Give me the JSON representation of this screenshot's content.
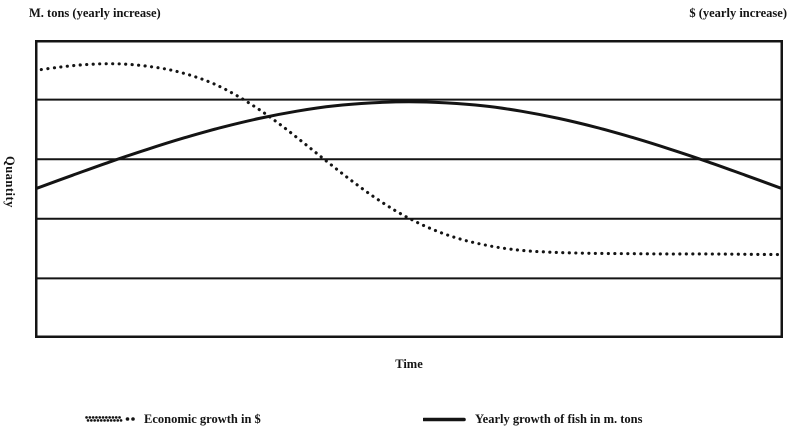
{
  "header": {
    "left_label": "M. tons (yearly increase)",
    "right_label": "$ (yearly increase)"
  },
  "axes": {
    "y_label": "Quantity",
    "x_label": "Time"
  },
  "legend": [
    {
      "label": "Economic growth in $",
      "style": "dotted"
    },
    {
      "label": "Yearly growth of fish in m. tons",
      "style": "solid"
    }
  ],
  "colors": {
    "ink": "#141414",
    "background": "#ffffff"
  },
  "chart_data": {
    "type": "line",
    "title": "",
    "xlabel": "Time",
    "ylabel": "Quantity",
    "x_range": [
      0,
      100
    ],
    "y_range": [
      0,
      100
    ],
    "axis_tick_labels": "none",
    "grid": "horizontal-only",
    "gridlines_y": [
      20,
      40,
      60,
      80
    ],
    "legend_position": "below-chart",
    "series": [
      {
        "name": "Economic growth in $",
        "style": "dotted",
        "points": [
          [
            0,
            89.8
          ],
          [
            3,
            90.8
          ],
          [
            6,
            91.6
          ],
          [
            9,
            92.0
          ],
          [
            12,
            91.9
          ],
          [
            15,
            91.2
          ],
          [
            18,
            90.0
          ],
          [
            21,
            88.0
          ],
          [
            24,
            85.2
          ],
          [
            27,
            81.3
          ],
          [
            30,
            76.6
          ],
          [
            33,
            71.2
          ],
          [
            36,
            65.3
          ],
          [
            39,
            59.3
          ],
          [
            42,
            53.4
          ],
          [
            45,
            47.9
          ],
          [
            48,
            43.0
          ],
          [
            51,
            38.9
          ],
          [
            54,
            35.6
          ],
          [
            57,
            33.1
          ],
          [
            60,
            31.3
          ],
          [
            63,
            30.0
          ],
          [
            66,
            29.2
          ],
          [
            70,
            28.7
          ],
          [
            75,
            28.4
          ],
          [
            80,
            28.3
          ],
          [
            85,
            28.2
          ],
          [
            90,
            28.2
          ],
          [
            95,
            28.1
          ],
          [
            100,
            28.0
          ]
        ]
      },
      {
        "name": "Yearly growth of fish in m. tons",
        "style": "solid",
        "points": [
          [
            0,
            50.0
          ],
          [
            5,
            54.6
          ],
          [
            10,
            59.1
          ],
          [
            15,
            63.3
          ],
          [
            20,
            67.2
          ],
          [
            25,
            70.7
          ],
          [
            30,
            73.7
          ],
          [
            35,
            76.1
          ],
          [
            40,
            77.9
          ],
          [
            45,
            78.9
          ],
          [
            50,
            79.3
          ],
          [
            55,
            78.9
          ],
          [
            60,
            77.9
          ],
          [
            65,
            76.1
          ],
          [
            70,
            73.7
          ],
          [
            75,
            70.7
          ],
          [
            80,
            67.2
          ],
          [
            85,
            63.3
          ],
          [
            90,
            59.1
          ],
          [
            95,
            54.6
          ],
          [
            100,
            50.0
          ]
        ]
      }
    ]
  }
}
